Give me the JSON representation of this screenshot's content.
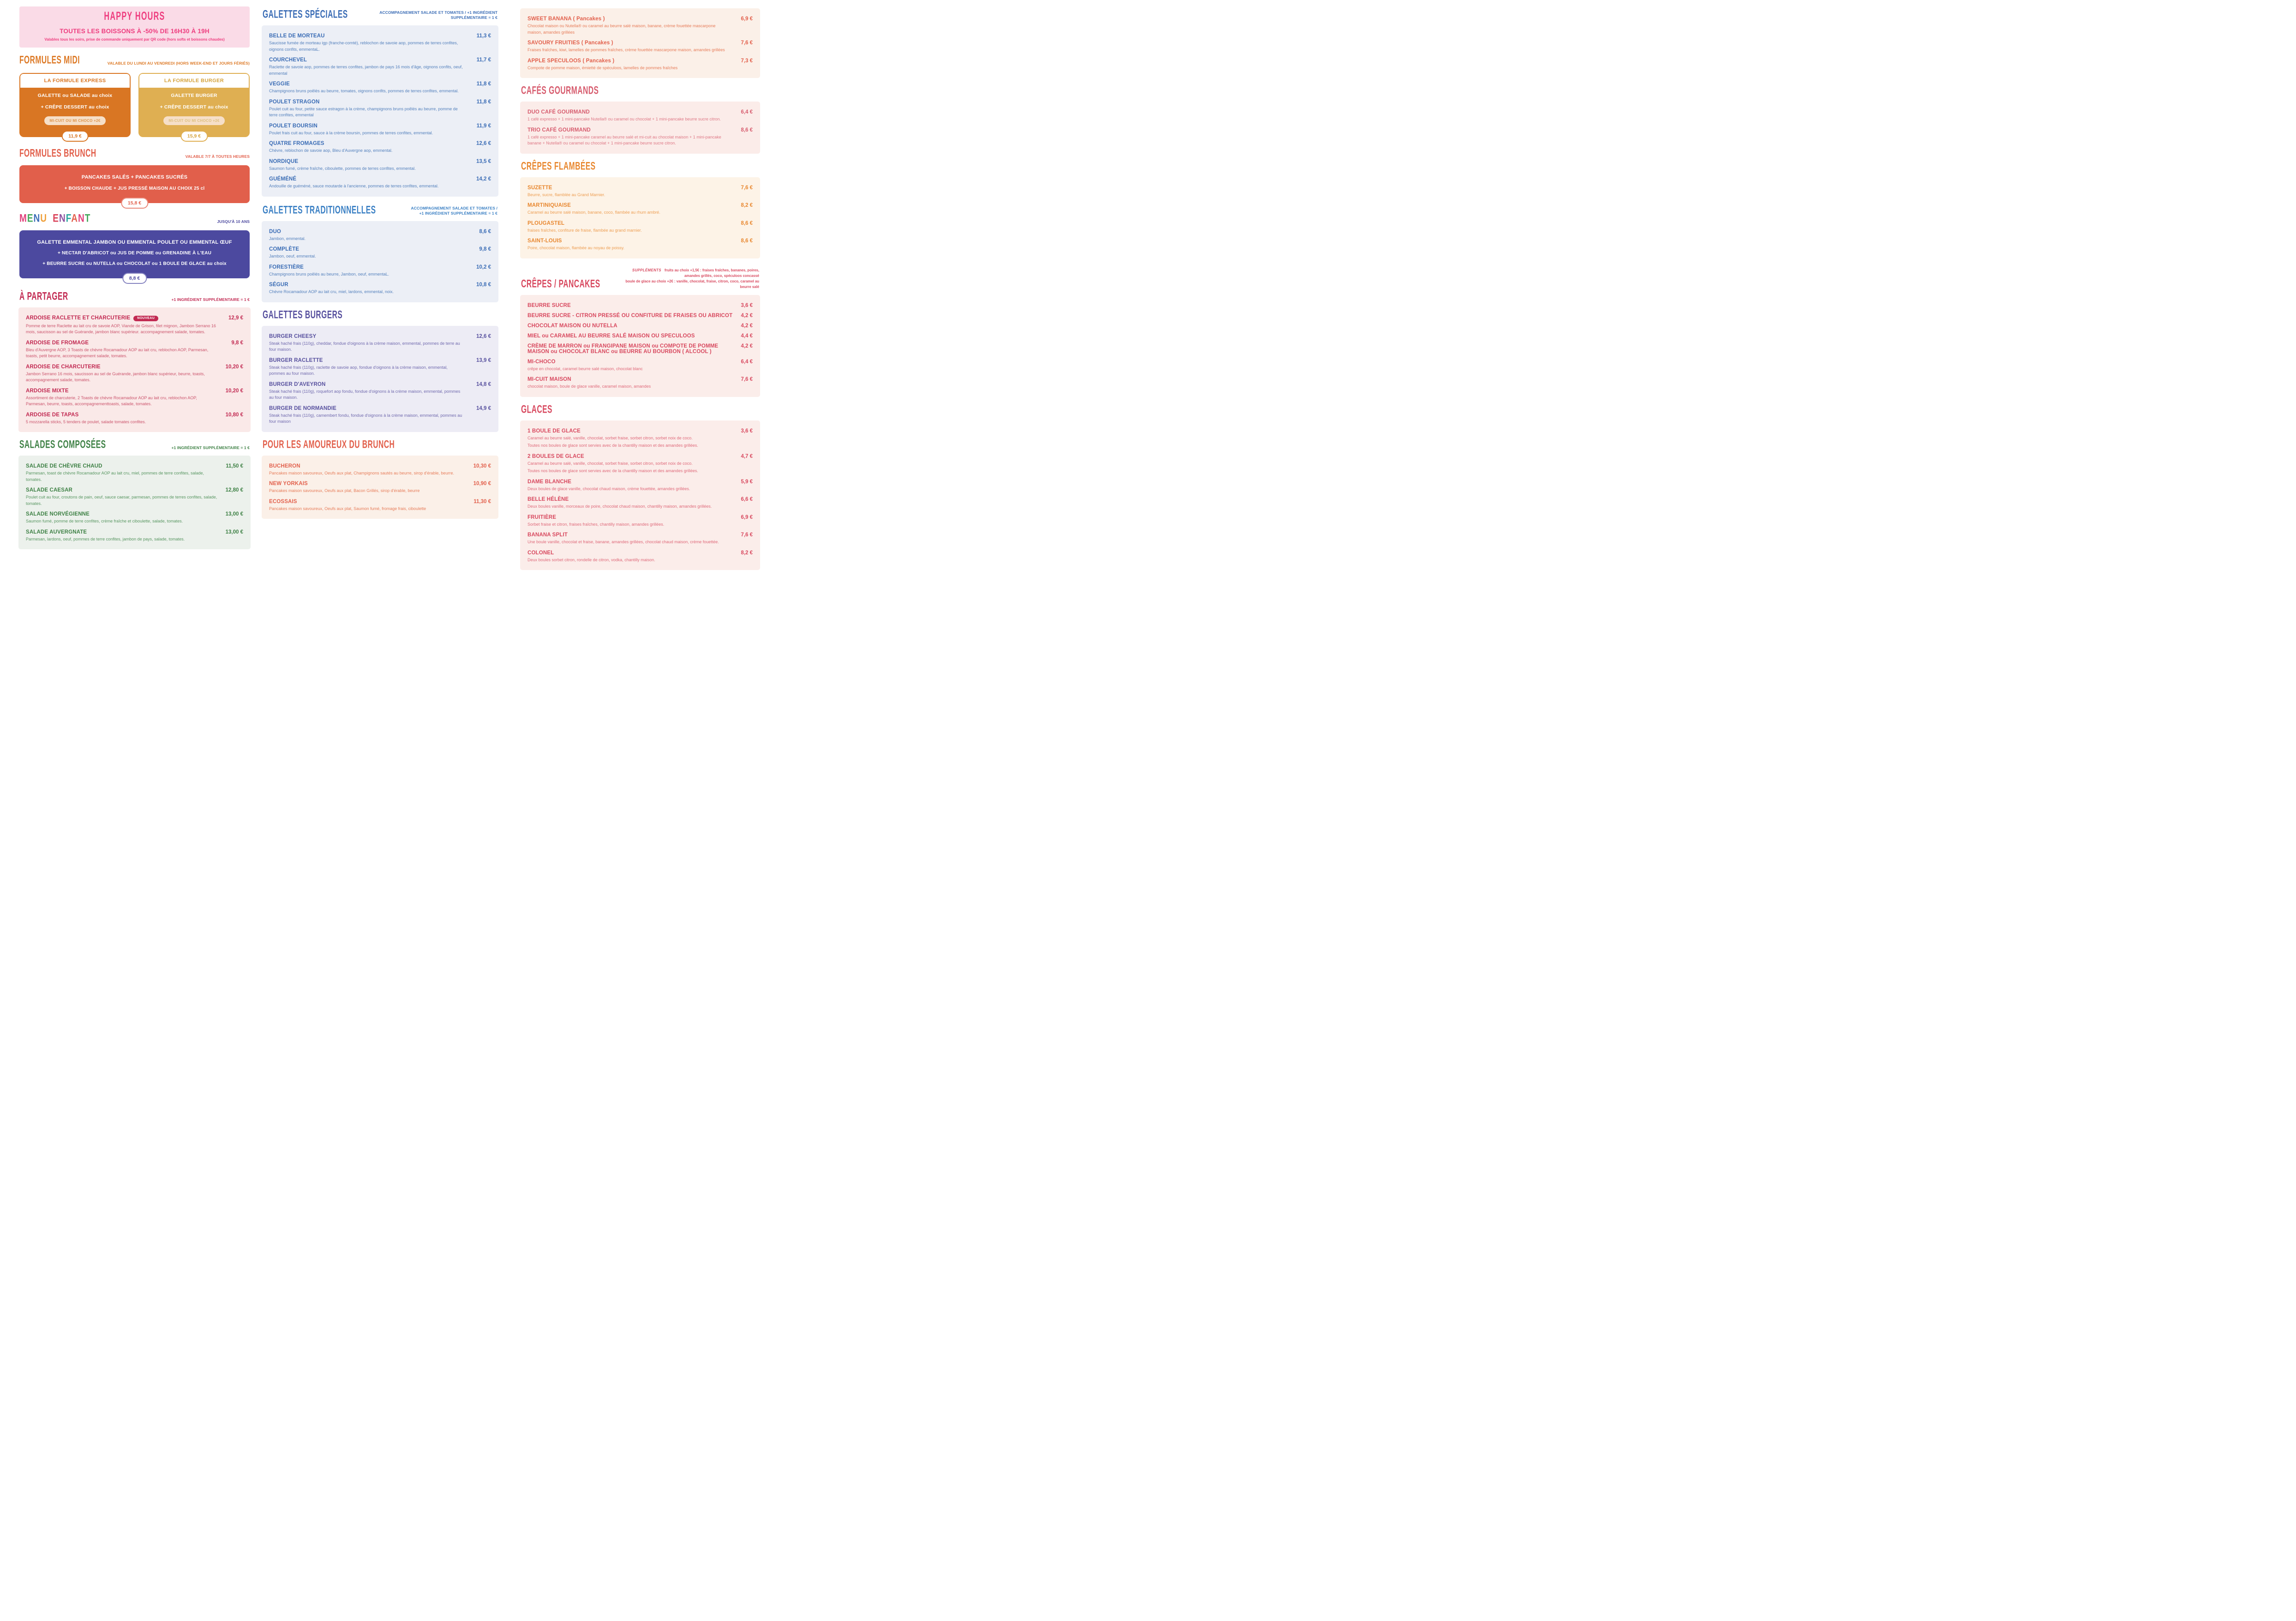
{
  "happy_hours": {
    "title": "HAPPY HOURS",
    "subtitle": "TOUTES LES BOISSONS À -50% DE 16H30 À 19H",
    "note": "Valables tous les soirs, prise de commande uniquement par QR code (hors softs et boissons chaudes)",
    "bg": "#FADBE7",
    "color": "#EE3D7F"
  },
  "formules_midi": {
    "title": "FORMULES MIDI",
    "note": "VALABLE DU LUNDI AU VENDREDI (HORS WEEK-END ET JOURS FÉRIÉS)",
    "color": "#DD7A27",
    "cards": [
      {
        "title": "LA FORMULE EXPRESS",
        "line1": "GALETTE ou SALADE au choix",
        "line2": "+ CRÊPE DESSERT au choix",
        "badge": "MI-CUIT OU MI CHOCO +2€",
        "price": "11,9 €",
        "bg": "#D97623"
      },
      {
        "title": "LA FORMULE BURGER",
        "line1": "GALETTE BURGER",
        "line2": "+ CRÊPE DESSERT au choix",
        "badge": "MI-CUIT OU MI CHOCO +2€",
        "price": "15,9 €",
        "bg": "#DFAF52"
      }
    ]
  },
  "formules_brunch": {
    "title": "FORMULES BRUNCH",
    "note": "VALABLE 7/7 À TOUTES HEURES",
    "color": "#E2604C",
    "card": {
      "line1": "PANCAKES SALÉS + PANCAKES SUCRÉS",
      "line2": "+ BOISSON CHAUDE + JUS PRESSÉ MAISON AU CHOIX 25 cl",
      "price": "15,8 €",
      "bg": "#E15F4B"
    }
  },
  "menu_enfant": {
    "title": "MENU ENFANT",
    "note": "JUSQU'À 10 ANS",
    "note_color": "#4C499F",
    "letter_colors": [
      "#E0417B",
      "#44A85C",
      "#3E6FB8",
      "#EFA03B",
      "#D94057",
      "#8E52A1",
      "#2BA8A0",
      "#E2604C"
    ],
    "card": {
      "line1": "GALETTE EMMENTAL JAMBON OU EMMENTAL POULET OU EMMENTAL ŒUF",
      "line2": "+ NECTAR D'ABRICOT ou JUS DE POMME ou GRENADINE À L'EAU",
      "line3": "+ BEURRE SUCRE ou NUTELLA ou CHOCOLAT ou 1 BOULE DE GLACE au choix",
      "price": "8,8 €",
      "bg": "#4C499F"
    }
  },
  "sections": {
    "a_partager": {
      "title": "À PARTAGER",
      "note": "+1 INGRÉDIENT SUPPLÉMENTAIRE = 1 €",
      "accent": "#C22A52",
      "desc_color": "#C84A64",
      "panel_bg": "#FAE9E8",
      "items": [
        {
          "name": "ARDOISE RACLETTE ET CHARCUTERIE",
          "badge": "NOUVEAU",
          "price": "12,9 €",
          "desc": "Pomme de terre Raclette au lait cru de savoie AOP, Viande de Grison, filet mignon, Jambon Serrano 16 mois, saucisson au sel de Guérande, jambon blanc supérieur. accompagnement salade, tomates."
        },
        {
          "name": "ARDOISE DE FROMAGE",
          "price": "9,8 €",
          "desc": "Bleu d'Auvergne AOP, 3 Toasts de chèvre Rocamadour AOP au lait cru, reblochon AOP, Parmesan, toasts, petit beurre, accompagnement salade, tomates."
        },
        {
          "name": "ARDOISE DE CHARCUTERIE",
          "price": "10,20 €",
          "desc": "Jambon Serrano 16 mois, saucisson au sel de Guérande, jambon blanc supérieur, beurre, toasts, accompagnement salade, tomates."
        },
        {
          "name": "ARDOISE MIXTE",
          "price": "10,20 €",
          "desc": "Assortiment de charcuterie, 2 Toasts de chèvre Rocamadour AOP au lait cru, reblochon AOP, Parmesan, beurre, toasts, accompagnementtoasts, salade, tomates."
        },
        {
          "name": "ARDOISE DE TAPAS",
          "price": "10,80 €",
          "desc": "5 mozzarella sticks, 5 tenders de poulet, salade tomates confites."
        }
      ]
    },
    "salades": {
      "title": "SALADES COMPOSÉES",
      "note": "+1 INGRÉDIENT SUPPLÉMENTAIRE = 1 €",
      "accent": "#3E8145",
      "desc_color": "#4C8F56",
      "panel_bg": "#ECF1EC",
      "items": [
        {
          "name": "SALADE DE CHÈVRE CHAUD",
          "price": "11,50 €",
          "desc": "Parmesan, toast de chèvre Rocamadour AOP au lait cru, miel, pommes de terre confites, salade, tomates."
        },
        {
          "name": "SALADE CAESAR",
          "price": "12,80 €",
          "desc": "Poulet cuit au four, croutons de pain, oeuf, sauce caesar, parmesan, pommes de terres confites, salade, tomates."
        },
        {
          "name": "SALADE NORVÉGIENNE",
          "price": "13,00 €",
          "desc": "Saumon fumé, pomme de terre confites, crème fraîche et ciboulette, salade, tomates."
        },
        {
          "name": "SALADE AUVERGNATE",
          "price": "13,00 €",
          "desc": "Parmesan, lardons, oeuf, pommes de terre confites, jambon de pays, salade, tomates."
        }
      ]
    },
    "galettes_speciales": {
      "title": "GALETTES SPÉCIALES",
      "note": "ACCOMPAGNEMENT SALADE ET TOMATES / +1 INGRÉDIENT SUPPLÉMENTAIRE = 1 €",
      "accent": "#3A6CB5",
      "desc_color": "#4878B8",
      "panel_bg": "#ECEFF6",
      "items": [
        {
          "name": "BELLE DE MORTEAU",
          "price": "11,3 €",
          "desc": "Saucisse fumée de morteau igp (franche-comté), reblochon de savoie aop, pommes de terres confites, oignons confits, emmentaL."
        },
        {
          "name": "COURCHEVEL",
          "price": "11,7 €",
          "desc": "Raclette de savoie aop, pommes de terres confites, jambon de pays 16 mois d'âge, oignons confits, oeuf, emmental"
        },
        {
          "name": "VEGGIE",
          "price": "11,8 €",
          "desc": "Champignons bruns poêlés au beurre, tomates, oignons confits, pommes de terres confites, emmental."
        },
        {
          "name": "POULET STRAGON",
          "price": "11,8 €",
          "desc": "Poulet cuit au four, petite sauce estragon à la crème, champignons bruns poêlés au beurre, pomme de terre confites, emmental"
        },
        {
          "name": "POULET BOURSIN",
          "price": "11,9 €",
          "desc": "Poulet frais cuit au four, sauce à la crème boursin, pommes de terres confites, emmental."
        },
        {
          "name": "QUATRE FROMAGES",
          "price": "12,6 €",
          "desc": "Chèvre, reblochon de savoie aop, Bleu d'Auvergne aop, emmental."
        },
        {
          "name": "NORDIQUE",
          "price": "13,5 €",
          "desc": "Saumon fumé, crème fraîche, ciboulette, pommes de terres confites, emmental."
        },
        {
          "name": "GUÉMÉNÉ",
          "price": "14,2 €",
          "desc": "Andouille de guéméné, sauce moutarde à l'ancienne, pommes de terres confites, emmental."
        }
      ]
    },
    "galettes_traditionnelles": {
      "title": "GALETTES TRADITIONNELLES",
      "title_color": "#3B80C4",
      "note": "ACCOMPAGNEMENT SALADE ET TOMATES / +1 INGRÉDIENT SUPPLÉMENTAIRE = 1 €",
      "accent": "#3A6CB5",
      "desc_color": "#4878B8",
      "panel_bg": "#ECEFF6",
      "items": [
        {
          "name": "DUO",
          "price": "8,6 €",
          "desc": "Jambon, emmental."
        },
        {
          "name": "COMPLÈTE",
          "price": "9,8 €",
          "desc": "Jambon, oeuf, emmental."
        },
        {
          "name": "FORESTIÈRE",
          "price": "10,2 €",
          "desc": "Champignons bruns poêlés au beurre, Jambon, oeuf, emmentaL."
        },
        {
          "name": "SÉGUR",
          "price": "10,8 €",
          "desc": "Chèvre Rocamadour AOP au lait cru, miel, lardons, emmental, noix."
        }
      ]
    },
    "galettes_burgers": {
      "title": "GALETTES BURGERS",
      "accent": "#57509E",
      "desc_color": "#665FA8",
      "panel_bg": "#EDECF5",
      "items": [
        {
          "name": "BURGER CHEESY",
          "price": "12,6 €",
          "desc": "Steak haché frais (110g), cheddar, fondue d'oignons à la crème maison, emmental, pommes de terre au four maison."
        },
        {
          "name": "BURGER RACLETTE",
          "price": "13,9 €",
          "desc": "Steak haché frais (110g), raclette de savoie aop, fondue d'oignons à la crème maison, emmental, pommes au four maison."
        },
        {
          "name": "BURGER D'AVEYRON",
          "price": "14,8 €",
          "desc": "Steak haché frais (110g), roquefort aop fondu, fondue d'oignons à la crème maison, emmental, pommes au four maison."
        },
        {
          "name": "BURGER DE NORMANDIE",
          "price": "14,9 €",
          "desc": "Steak haché frais (110g), camembert fondu, fondue d'oignons à la crème maison, emmental, pommes au four maison"
        }
      ]
    },
    "brunch_lovers": {
      "title": "POUR LES AMOUREUX DU BRUNCH",
      "accent": "#E2604C",
      "desc_color": "#E5744F",
      "panel_bg": "#FBF0E8",
      "items": [
        {
          "name": "BUCHERON",
          "price": "10,30 €",
          "desc": "Pancakes maison savoureux, Oeufs aux plat, Champignons sautés au beurre, sirop d'érable, beurre."
        },
        {
          "name": "NEW YORKAIS",
          "price": "10,90 €",
          "desc": "Pancakes maison savoureux, Oeufs aux plat, Bacon Grillés, sirop d'érable, beurre"
        },
        {
          "name": "ECOSSAIS",
          "price": "11,30 €",
          "desc": "Pancakes maison savoureux, Oeufs aux plat, Saumon fumé, fromage frais, ciboulette"
        }
      ]
    },
    "pancakes_top": {
      "accent": "#E2604C",
      "desc_color": "#E5744F",
      "panel_bg": "#FBF0E8",
      "items": [
        {
          "name": "SWEET BANANA ( Pancakes )",
          "price": "6,9 €",
          "desc": "Chocolat maison ou Nutella® ou caramel au beurre salé maison, banane, crème fouettée mascarpone maison, amandes grillées"
        },
        {
          "name": "SAVOURY FRUITIES ( Pancakes )",
          "price": "7,6 €",
          "desc": "Fraises fraîches, kiwi, lamelles de pommes fraîches, crème fouettée mascarpone maison, amandes grillées"
        },
        {
          "name": "APPLE SPECULOOS ( Pancakes )",
          "price": "7,3 €",
          "desc": "Compote de pomme maison, émietté de spéculoos, lamelles de pommes fraîches"
        }
      ]
    },
    "cafes_gourmands": {
      "title": "CAFÉS GOURMANDS",
      "accent": "#D75C6E",
      "desc_color": "#DC6F7E",
      "panel_bg": "#FBECE9",
      "items": [
        {
          "name": "DUO CAFÉ GOURMAND",
          "price": "6,4 €",
          "desc": "1 café expresso + 1 mini-pancake Nutella® ou caramel ou chocolat + 1 mini-pancake beurre sucre citron."
        },
        {
          "name": "TRIO CAFÉ GOURMAND",
          "price": "8,6 €",
          "desc": "1 café expresso + 1 mini-pancake caramel au beurre salé et mi-cuit au chocolat maison + 1 mini-pancake banane + Nutella® ou caramel ou chocolat + 1 mini-pancake beurre sucre citron."
        }
      ]
    },
    "crepes_flambees": {
      "title": "CRÊPES FLAMBÉES",
      "accent": "#E8872F",
      "desc_color": "#EC9848",
      "panel_bg": "#FDF3E7",
      "items": [
        {
          "name": "SUZETTE",
          "price": "7,6 €",
          "desc": "Beurre, sucre, flamblée au Grand Marnier."
        },
        {
          "name": "MARTINIQUAISE",
          "price": "8,2 €",
          "desc": "Caramel au beurre salé maison, banane, coco, flambée au rhum ambré."
        },
        {
          "name": "PLOUGASTEL",
          "price": "8,6 €",
          "desc": "fraises fraîches, confiture de fraise, flambée au grand marnier."
        },
        {
          "name": "SAINT-LOUIS",
          "price": "8,6 €",
          "desc": "Poire, chocolat maison, flambée au noyau de poissy."
        }
      ]
    },
    "crepes_pancakes": {
      "title": "CRÊPES / PANCAKES",
      "accent": "#D8495F",
      "desc_color": "#DD6072",
      "panel_bg": "#FBEDEA",
      "supplements": {
        "label": "SUPPLÉMENTS",
        "lines": [
          "fruits au choix +1,5€ : fraises fraîches, bananes, poires, amandes grillés, coco, spéculoos concassé",
          "boule de glace au choix +2€ : vanille, chocolat, fraise, citron, coco, caramel au beurre salé"
        ]
      },
      "items": [
        {
          "name": "BEURRE SUCRE",
          "price": "3,6 €"
        },
        {
          "name": "BEURRE SUCRE - CITRON PRESSÉ OU CONFITURE DE FRAISES OU ABRICOT",
          "price": "4,2 €"
        },
        {
          "name": "CHOCOLAT MAISON OU NUTELLA",
          "price": "4,2 €"
        },
        {
          "name": "MIEL ou CARAMEL AU BEURRE SALÉ MAISON OU SPECULOOS",
          "price": "4,4 €"
        },
        {
          "name": "CRÈME DE MARRON ou FRANGIPANE MAISON ou COMPOTE DE POMME MAISON ou CHOCOLAT BLANC ou BEURRE AU BOURBON ( ALCOOL )",
          "price": "4,2 €"
        },
        {
          "name": "MI-CHOCO",
          "price": "6,4 €",
          "desc": "crêpe en chocolat, caramel beurre salé maison, chocolat blanc"
        },
        {
          "name": "MI-CUIT MAISON",
          "price": "7,6 €",
          "desc": "chocolat maison, boule de glace vanille, caramel maison, amandes"
        }
      ]
    },
    "glaces": {
      "title": "GLACES",
      "accent": "#D8495F",
      "desc_color": "#DD6072",
      "panel_bg": "#FBEDEA",
      "items": [
        {
          "name": "1 BOULE DE GLACE",
          "price": "3,6 €",
          "desc": [
            "Caramel au beurre salé, vanille, chocolat, sorbet fraise, sorbet citron, sorbet noix de coco.",
            "Toutes nos boules de glace sont servies avec de la chantilly maison et des amandes grillées."
          ]
        },
        {
          "name": "2 BOULES DE GLACE",
          "price": "4,7 €",
          "desc": [
            "Caramel au beurre salé, vanille, chocolat, sorbet fraise, sorbet citron, sorbet noix de coco.",
            "Toutes nos boules de glace sont servies avec de la chantilly maison et des amandes grillées."
          ]
        },
        {
          "name": "DAME BLANCHE",
          "price": "5,9 €",
          "desc": "Deux boules de glace vanille, chocolat chaud maison, crème fouettée, amandes grillées."
        },
        {
          "name": "BELLE HÉLÈNE",
          "price": "6,6 €",
          "desc": "Deux boules vanille, morceaux de poire, chocolat chaud maison, chantilly maison, amandes grillées."
        },
        {
          "name": "FRUITIÈRE",
          "price": "6,9 €",
          "desc": "Sorbet fraise et citron, fraises fraîches, chantilly maison, amandes grillées."
        },
        {
          "name": "BANANA SPLIT",
          "price": "7,6 €",
          "desc": "Une boule vanille, chocolat et fraise, banane, amandes grillées, chocolat chaud maison, crème fouettée."
        },
        {
          "name": "COLONEL",
          "price": "8,2 €",
          "desc": "Deux boules sorbet citron, rondelle de citron, vodka, chantilly maison."
        }
      ]
    }
  }
}
